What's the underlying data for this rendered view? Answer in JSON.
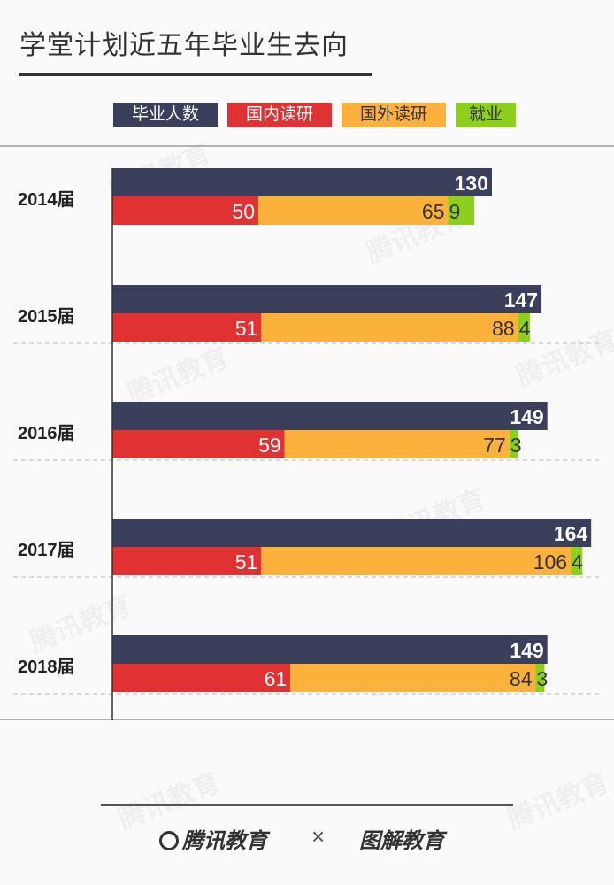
{
  "title": "学堂计划近五年毕业生去向",
  "legend": [
    {
      "label": "毕业人数",
      "color": "#3a3f5c",
      "text_color": "#ffffff"
    },
    {
      "label": "国内读研",
      "color": "#e03233",
      "text_color": "#ffffff"
    },
    {
      "label": "国外读研",
      "color": "#fbb13c",
      "text_color": "#333333"
    },
    {
      "label": "就业",
      "color": "#8ccf1c",
      "text_color": "#333333"
    }
  ],
  "chart_data": {
    "type": "bar",
    "categories": [
      "2014届",
      "2015届",
      "2016届",
      "2017届",
      "2018届"
    ],
    "series": [
      {
        "name": "毕业人数",
        "values": [
          130,
          147,
          149,
          164,
          149
        ],
        "color": "#3a3f5c"
      },
      {
        "name": "国内读研",
        "values": [
          50,
          51,
          59,
          51,
          61
        ],
        "color": "#e03233"
      },
      {
        "name": "国外读研",
        "values": [
          65,
          88,
          77,
          106,
          84
        ],
        "color": "#fbb13c"
      },
      {
        "name": "就业",
        "values": [
          9,
          4,
          3,
          4,
          3
        ],
        "color": "#8ccf1c"
      }
    ],
    "stacked_series": [
      "国内读研",
      "国外读研",
      "就业"
    ],
    "orientation": "horizontal",
    "title": "学堂计划近五年毕业生去向",
    "xlabel": "",
    "ylabel": "",
    "xlim": [
      0,
      170
    ],
    "grid": false,
    "legend_position": "top"
  },
  "watermark": "腾讯教育",
  "footer": {
    "logo_left": "腾讯教育",
    "separator": "×",
    "logo_right": "图解教育"
  }
}
